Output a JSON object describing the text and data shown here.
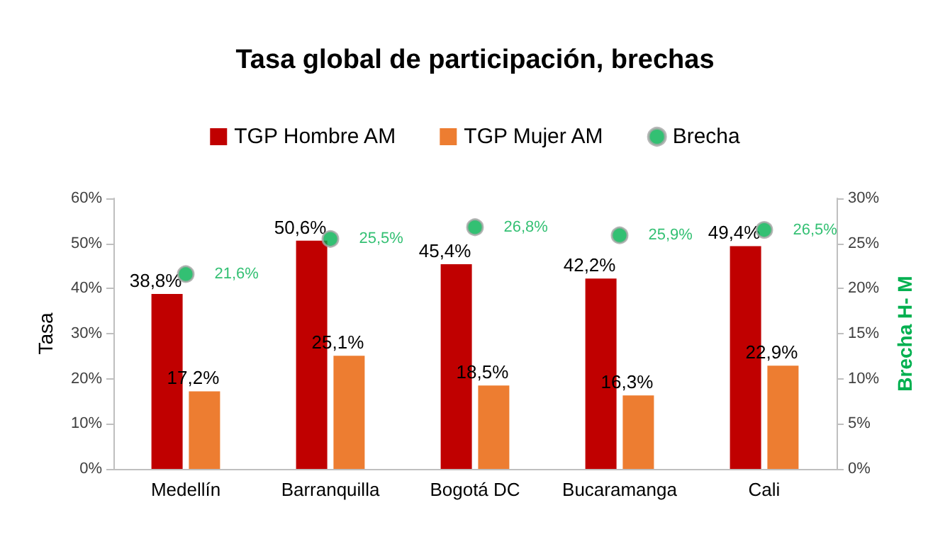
{
  "chart_data": {
    "type": "bar",
    "title": "Tasa global de participación, brechas",
    "ylabel": "Tasa",
    "y2label": "Brecha H- M",
    "categories": [
      "Medellín",
      "Barranquilla",
      "Bogotá DC",
      "Bucaramanga",
      "Cali"
    ],
    "series": [
      {
        "name": "TGP Hombre AM",
        "color": "#c00000",
        "values": [
          38.8,
          50.6,
          45.4,
          42.2,
          49.4
        ],
        "value_labels": [
          "38,8%",
          "50,6%",
          "45,4%",
          "42,2%",
          "49,4%"
        ]
      },
      {
        "name": "TGP Mujer AM",
        "color": "#ed7d31",
        "values": [
          17.2,
          25.1,
          18.5,
          16.3,
          22.9
        ],
        "value_labels": [
          "17,2%",
          "25,1%",
          "18,5%",
          "16,3%",
          "22,9%"
        ]
      },
      {
        "name": "Brecha",
        "type": "scatter",
        "axis": "y2",
        "marker": "circle",
        "color": "#00b050",
        "values": [
          21.6,
          25.5,
          26.8,
          25.9,
          26.5
        ],
        "value_labels": [
          "21,6%",
          "25,5%",
          "26,8%",
          "25,9%",
          "26,5%"
        ]
      }
    ],
    "ylim": [
      0,
      60
    ],
    "yticks": [
      {
        "value": 0,
        "label": "0%"
      },
      {
        "value": 10,
        "label": "10%"
      },
      {
        "value": 20,
        "label": "20%"
      },
      {
        "value": 30,
        "label": "30%"
      },
      {
        "value": 40,
        "label": "40%"
      },
      {
        "value": 50,
        "label": "50%"
      },
      {
        "value": 60,
        "label": "60%"
      }
    ],
    "y2lim": [
      0,
      30
    ],
    "y2ticks": [
      {
        "value": 0,
        "label": "0%"
      },
      {
        "value": 5,
        "label": "5%"
      },
      {
        "value": 10,
        "label": "10%"
      },
      {
        "value": 15,
        "label": "15%"
      },
      {
        "value": 20,
        "label": "20%"
      },
      {
        "value": 25,
        "label": "25%"
      },
      {
        "value": 30,
        "label": "30%"
      }
    ],
    "legend": "top",
    "grid": false
  }
}
